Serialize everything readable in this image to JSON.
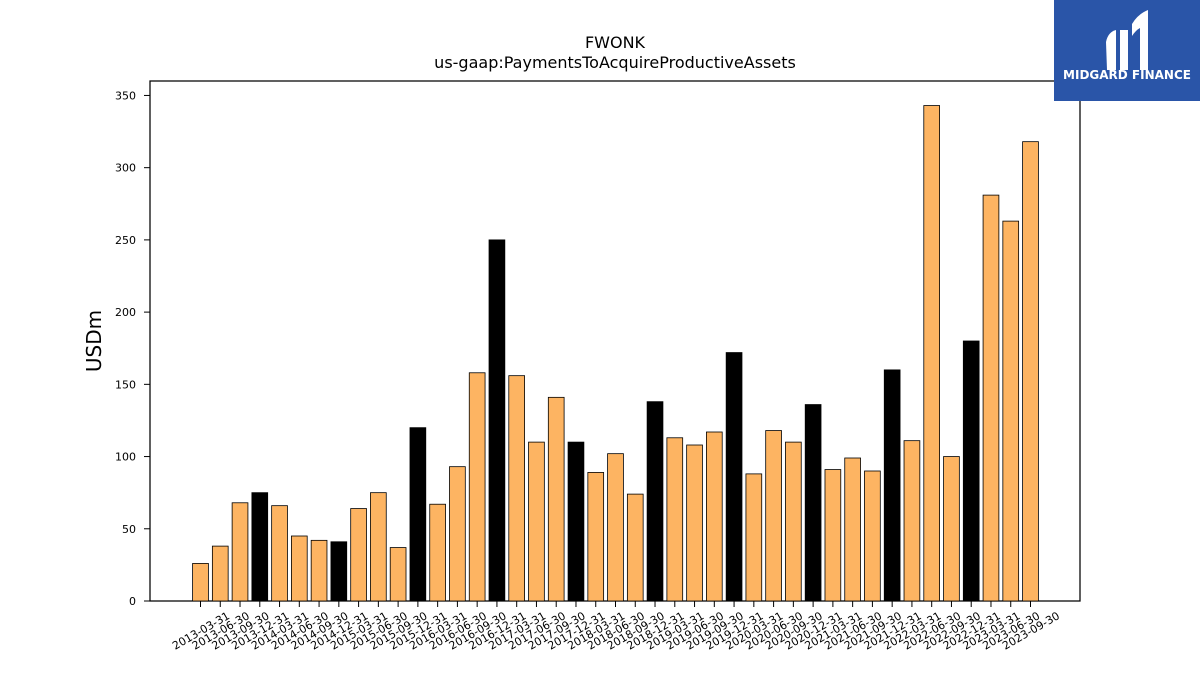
{
  "brand": {
    "name": "MIDGARD FINANCE",
    "background_color": "#2a55a8",
    "text_color": "#ffffff"
  },
  "colors": {
    "bar_default": "#fdb462",
    "bar_highlight": "#000000",
    "bar_edge": "#000000"
  },
  "chart_data": {
    "type": "bar",
    "title": "FWONK",
    "subtitle": "us-gaap:PaymentsToAcquireProductiveAssets",
    "xlabel": "",
    "ylabel": "USDm",
    "ylim": [
      0,
      360
    ],
    "yticks": [
      0,
      50,
      100,
      150,
      200,
      250,
      300,
      350
    ],
    "grid": false,
    "legend": "none",
    "categories": [
      "2013-03-31",
      "2013-06-30",
      "2013-09-30",
      "2013-12-31",
      "2014-03-31",
      "2014-06-30",
      "2014-09-30",
      "2014-12-31",
      "2015-03-31",
      "2015-06-30",
      "2015-09-30",
      "2015-12-31",
      "2016-03-31",
      "2016-06-30",
      "2016-09-30",
      "2016-12-31",
      "2017-03-31",
      "2017-06-30",
      "2017-09-30",
      "2017-12-31",
      "2018-03-31",
      "2018-06-30",
      "2018-09-30",
      "2018-12-31",
      "2019-03-31",
      "2019-06-30",
      "2019-09-30",
      "2019-12-31",
      "2020-03-31",
      "2020-06-30",
      "2020-09-30",
      "2020-12-31",
      "2021-03-31",
      "2021-06-30",
      "2021-09-30",
      "2021-12-31",
      "2022-03-31",
      "2022-06-30",
      "2022-09-30",
      "2022-12-31",
      "2023-03-31",
      "2023-06-30",
      "2023-09-30"
    ],
    "values": [
      26,
      38,
      68,
      75,
      66,
      45,
      42,
      41,
      64,
      75,
      37,
      120,
      67,
      93,
      158,
      250,
      156,
      110,
      141,
      110,
      89,
      102,
      74,
      138,
      113,
      108,
      117,
      172,
      88,
      118,
      110,
      136,
      91,
      99,
      90,
      160,
      111,
      343,
      100,
      180,
      281,
      263,
      318
    ],
    "highlight_quarter": "12-31"
  }
}
